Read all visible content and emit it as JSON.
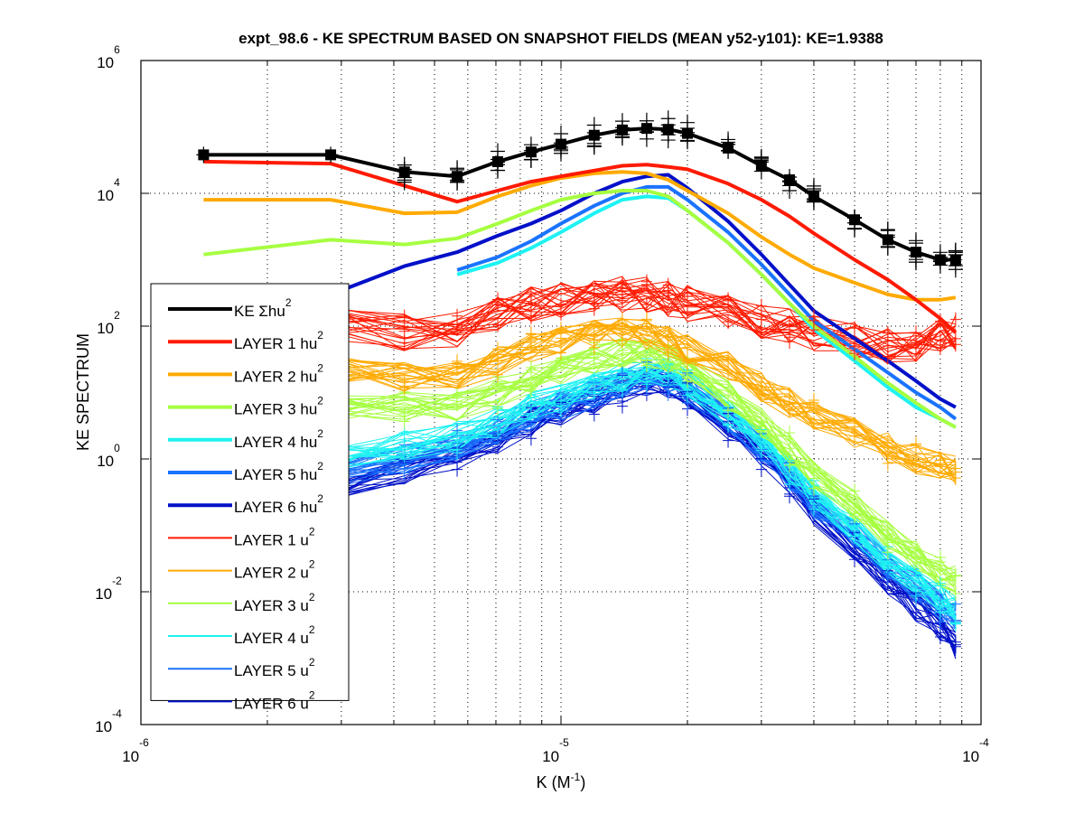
{
  "chart_data": {
    "type": "line",
    "title": "expt_98.6 - KE SPECTRUM BASED ON SNAPSHOT FIELDS (MEAN y52-y101): KE=1.9388",
    "xlabel": "K  (M",
    "xlabel_sup": "-1",
    "xlabel_close": ")",
    "ylabel": "KE SPECTRUM",
    "xscale": "log",
    "yscale": "log",
    "xlim": [
      1e-06,
      0.0001
    ],
    "ylim": [
      0.0001,
      1000000.0
    ],
    "grid": true,
    "legend_position": "left",
    "x_ticks": [
      {
        "base": "10",
        "exp": "-6",
        "value": 1e-06
      },
      {
        "base": "10",
        "exp": "-5",
        "value": 1e-05
      },
      {
        "base": "10",
        "exp": "-4",
        "value": 0.0001
      }
    ],
    "y_ticks": [
      {
        "base": "10",
        "exp": "6",
        "value": 1000000.0
      },
      {
        "base": "10",
        "exp": "4",
        "value": 10000.0
      },
      {
        "base": "10",
        "exp": "2",
        "value": 100.0
      },
      {
        "base": "10",
        "exp": "0",
        "value": 1
      },
      {
        "base": "10",
        "exp": "-2",
        "value": 0.01
      },
      {
        "base": "10",
        "exp": "-4",
        "value": 0.0001
      }
    ],
    "x": [
      1.41e-06,
      2.83e-06,
      4.24e-06,
      5.66e-06,
      7.07e-06,
      8.49e-06,
      1e-05,
      1.2e-05,
      1.4e-05,
      1.6e-05,
      1.8e-05,
      2e-05,
      2.5e-05,
      3e-05,
      3.5e-05,
      4e-05,
      5e-05,
      6e-05,
      7e-05,
      8e-05,
      8.7e-05
    ],
    "series": [
      {
        "name": "KE Σhu",
        "sup": "2",
        "color": "#000000",
        "kind": "thick",
        "values": [
          38000,
          38000,
          21000,
          18000,
          30000,
          42000,
          55000,
          75000,
          90000,
          95000,
          92000,
          80000,
          48000,
          26000,
          16000,
          9000,
          4000,
          2000,
          1300,
          1000,
          1000
        ]
      },
      {
        "name": "LAYER 1 hu",
        "sup": "2",
        "color": "#ff1a00",
        "kind": "thick",
        "values": [
          30000,
          28000,
          13000,
          7500,
          11000,
          15000,
          18000,
          22000,
          26000,
          27000,
          25000,
          23000,
          14000,
          8000,
          4500,
          2500,
          1000,
          500,
          250,
          130,
          80
        ]
      },
      {
        "name": "LAYER 2 hu",
        "sup": "2",
        "color": "#ffaa00",
        "kind": "thick",
        "values": [
          8000,
          8000,
          5000,
          5200,
          9000,
          13000,
          17000,
          20000,
          21000,
          20000,
          16000,
          11000,
          5000,
          2200,
          1200,
          750,
          450,
          300,
          250,
          250,
          270
        ]
      },
      {
        "name": "LAYER 3 hu",
        "sup": "2",
        "color": "#a6ff40",
        "kind": "thick",
        "values": [
          1200,
          2000,
          1700,
          2100,
          3500,
          5500,
          8000,
          10000,
          11000,
          11000,
          9000,
          5500,
          1800,
          600,
          220,
          100,
          35,
          14,
          7,
          4,
          3
        ]
      },
      {
        "name": "LAYER 4 hu",
        "sup": "2",
        "color": "#1ef2f2",
        "kind": "thick",
        "values": [
          null,
          null,
          null,
          600,
          900,
          1500,
          2600,
          5000,
          8000,
          9000,
          8500,
          5500,
          1800,
          600,
          220,
          90,
          30,
          12,
          6,
          4,
          3
        ]
      },
      {
        "name": "LAYER 5 hu",
        "sup": "2",
        "color": "#1a73ff",
        "kind": "thick",
        "values": [
          null,
          null,
          null,
          700,
          1100,
          1900,
          3500,
          6500,
          10000,
          12500,
          12500,
          8000,
          2600,
          850,
          300,
          120,
          45,
          20,
          10,
          6,
          4
        ]
      },
      {
        "name": "LAYER 6 hu",
        "sup": "2",
        "color": "#0010c8",
        "kind": "thick",
        "values": [
          null,
          300,
          800,
          1300,
          2300,
          3500,
          5500,
          10000,
          15000,
          18000,
          19000,
          12000,
          3800,
          1200,
          420,
          170,
          65,
          30,
          15,
          8,
          6
        ]
      },
      {
        "name": "LAYER 1 u",
        "sup": "2",
        "color": "#ff1a00",
        "kind": "thin",
        "values": [
          120,
          110,
          80,
          90,
          150,
          220,
          250,
          280,
          300,
          290,
          260,
          220,
          160,
          120,
          100,
          80,
          60,
          50,
          55,
          70,
          80
        ]
      },
      {
        "name": "LAYER 2 u",
        "sup": "2",
        "color": "#ffaa00",
        "kind": "thin",
        "values": [
          25,
          22,
          17,
          18,
          30,
          45,
          60,
          75,
          80,
          75,
          60,
          45,
          25,
          12,
          7,
          4.5,
          2.5,
          1.5,
          1.0,
          0.8,
          0.7
        ]
      },
      {
        "name": "LAYER 3 u",
        "sup": "2",
        "color": "#a6ff40",
        "kind": "thin",
        "values": [
          6,
          6,
          6,
          6,
          10,
          16,
          22,
          32,
          40,
          40,
          33,
          24,
          9,
          3.5,
          1.4,
          0.6,
          0.2,
          0.07,
          0.035,
          0.02,
          0.015
        ]
      },
      {
        "name": "LAYER 4 u",
        "sup": "2",
        "color": "#1ef2f2",
        "kind": "thin",
        "values": [
          0.9,
          1.1,
          1.6,
          2.2,
          3.5,
          6,
          8,
          12,
          17,
          22,
          20,
          14,
          5,
          1.8,
          0.7,
          0.3,
          0.09,
          0.03,
          0.015,
          0.008,
          0.005
        ]
      },
      {
        "name": "LAYER 5 u",
        "sup": "2",
        "color": "#1a73ff",
        "kind": "thin",
        "values": [
          0.4,
          0.6,
          1.0,
          1.6,
          2.8,
          4.5,
          6.5,
          10,
          14,
          18,
          17,
          12,
          4,
          1.5,
          0.55,
          0.22,
          0.07,
          0.025,
          0.012,
          0.006,
          0.004
        ]
      },
      {
        "name": "LAYER 6 u",
        "sup": "2",
        "color": "#0010c8",
        "kind": "thin",
        "values": [
          0.2,
          0.35,
          0.7,
          1.1,
          2.0,
          3.5,
          5,
          8,
          11,
          15,
          14,
          10,
          3.3,
          1.2,
          0.45,
          0.16,
          0.05,
          0.015,
          0.006,
          0.003,
          0.0015
        ]
      }
    ]
  }
}
